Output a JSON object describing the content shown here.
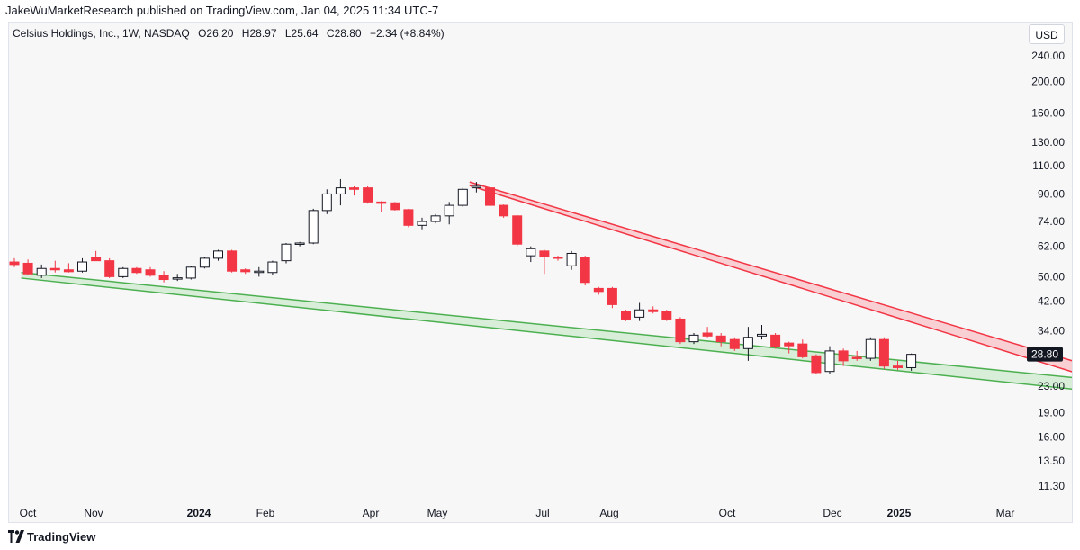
{
  "header": {
    "published_text": "JakeWuMarketResearch published on TradingView.com, Jan 04, 2025 11:34 UTC-7"
  },
  "legend": {
    "symbol": "Celsius Holdings, Inc., 1W, NASDAQ",
    "open_label": "O",
    "open": "26.20",
    "high_label": "H",
    "high": "28.97",
    "low_label": "L",
    "low": "25.64",
    "close_label": "C",
    "close": "28.80",
    "change": "+2.34 (+8.84%)"
  },
  "currency_button": "USD",
  "price_badge": "28.80",
  "footer": {
    "brand": "TradingView"
  },
  "colors": {
    "up": "#131722",
    "down": "#f23645",
    "upper_channel_stroke": "#f23645",
    "upper_channel_fill": "#f8c8cd",
    "lower_channel_stroke": "#4caf50",
    "lower_channel_fill": "#d4ecd3"
  },
  "chart_data": {
    "type": "candlestick",
    "title": "",
    "scale": "log",
    "xlabel": "",
    "ylabel": "",
    "y_ticks": [
      "240.00",
      "200.00",
      "160.00",
      "130.00",
      "110.00",
      "90.00",
      "74.00",
      "62.00",
      "50.00",
      "42.00",
      "34.00",
      "23.00",
      "19.00",
      "16.00",
      "13.50",
      "11.30"
    ],
    "x_ticks": [
      {
        "label": "Oct",
        "bold": false
      },
      {
        "label": "Nov",
        "bold": false
      },
      {
        "label": "2024",
        "bold": true
      },
      {
        "label": "Feb",
        "bold": false
      },
      {
        "label": "Apr",
        "bold": false
      },
      {
        "label": "May",
        "bold": false
      },
      {
        "label": "Jul",
        "bold": false
      },
      {
        "label": "Aug",
        "bold": false
      },
      {
        "label": "Oct",
        "bold": false
      },
      {
        "label": "Dec",
        "bold": false
      },
      {
        "label": "2025",
        "bold": true
      },
      {
        "label": "Mar",
        "bold": false
      }
    ],
    "candles": [
      {
        "o": 55.5,
        "h": 57,
        "l": 53.5,
        "c": 54.5
      },
      {
        "o": 55,
        "h": 56.5,
        "l": 50.5,
        "c": 51
      },
      {
        "o": 50.5,
        "h": 54.5,
        "l": 49.5,
        "c": 53
      },
      {
        "o": 53,
        "h": 56,
        "l": 51.5,
        "c": 52.5
      },
      {
        "o": 52.5,
        "h": 55,
        "l": 51.5,
        "c": 51.8
      },
      {
        "o": 52,
        "h": 57,
        "l": 51.5,
        "c": 55.5
      },
      {
        "o": 57.5,
        "h": 60,
        "l": 56,
        "c": 56
      },
      {
        "o": 56,
        "h": 57,
        "l": 49.5,
        "c": 50
      },
      {
        "o": 50,
        "h": 53.5,
        "l": 49.5,
        "c": 53
      },
      {
        "o": 53,
        "h": 53.5,
        "l": 51,
        "c": 51.5
      },
      {
        "o": 52.5,
        "h": 53.5,
        "l": 50,
        "c": 50.5
      },
      {
        "o": 50.5,
        "h": 52,
        "l": 48,
        "c": 49
      },
      {
        "o": 49.5,
        "h": 51,
        "l": 48.5,
        "c": 49.6
      },
      {
        "o": 49.5,
        "h": 54,
        "l": 49,
        "c": 53.5
      },
      {
        "o": 53.5,
        "h": 57.5,
        "l": 53,
        "c": 57
      },
      {
        "o": 57,
        "h": 60.5,
        "l": 56,
        "c": 60
      },
      {
        "o": 60,
        "h": 60.5,
        "l": 51.5,
        "c": 52
      },
      {
        "o": 52.5,
        "h": 53,
        "l": 51,
        "c": 51.8
      },
      {
        "o": 51.8,
        "h": 53.5,
        "l": 50,
        "c": 52
      },
      {
        "o": 51.5,
        "h": 56,
        "l": 50.5,
        "c": 55.5
      },
      {
        "o": 56,
        "h": 63.5,
        "l": 55,
        "c": 63
      },
      {
        "o": 63,
        "h": 64,
        "l": 62,
        "c": 63.5
      },
      {
        "o": 63.5,
        "h": 81,
        "l": 63,
        "c": 80
      },
      {
        "o": 80,
        "h": 93,
        "l": 78,
        "c": 90
      },
      {
        "o": 90,
        "h": 100,
        "l": 83,
        "c": 94
      },
      {
        "o": 94,
        "h": 95,
        "l": 89,
        "c": 93
      },
      {
        "o": 94,
        "h": 95,
        "l": 84,
        "c": 85
      },
      {
        "o": 85,
        "h": 85.5,
        "l": 79,
        "c": 84.5
      },
      {
        "o": 84.5,
        "h": 85,
        "l": 80,
        "c": 80.5
      },
      {
        "o": 80.5,
        "h": 81,
        "l": 71,
        "c": 72
      },
      {
        "o": 72,
        "h": 76,
        "l": 70,
        "c": 74
      },
      {
        "o": 74,
        "h": 78,
        "l": 73,
        "c": 77
      },
      {
        "o": 77,
        "h": 85,
        "l": 72.5,
        "c": 83
      },
      {
        "o": 83,
        "h": 94,
        "l": 82,
        "c": 93
      },
      {
        "o": 94,
        "h": 98,
        "l": 91,
        "c": 95
      },
      {
        "o": 94,
        "h": 94.5,
        "l": 82,
        "c": 83
      },
      {
        "o": 83,
        "h": 83.5,
        "l": 76,
        "c": 77
      },
      {
        "o": 77,
        "h": 77.5,
        "l": 62,
        "c": 63
      },
      {
        "o": 58,
        "h": 62,
        "l": 55.5,
        "c": 61
      },
      {
        "o": 60,
        "h": 60.5,
        "l": 51,
        "c": 57.5
      },
      {
        "o": 57.5,
        "h": 58,
        "l": 56,
        "c": 57.4
      },
      {
        "o": 54,
        "h": 60,
        "l": 52.5,
        "c": 59
      },
      {
        "o": 57.5,
        "h": 58,
        "l": 47,
        "c": 48
      },
      {
        "o": 46,
        "h": 46.5,
        "l": 44,
        "c": 45
      },
      {
        "o": 46,
        "h": 46.5,
        "l": 40,
        "c": 41
      },
      {
        "o": 39,
        "h": 39.5,
        "l": 36.5,
        "c": 37
      },
      {
        "o": 37.5,
        "h": 41.5,
        "l": 36.5,
        "c": 39.5
      },
      {
        "o": 39.5,
        "h": 40.5,
        "l": 38.5,
        "c": 39
      },
      {
        "o": 39,
        "h": 39.5,
        "l": 36.5,
        "c": 37
      },
      {
        "o": 37,
        "h": 37.5,
        "l": 31,
        "c": 31.5
      },
      {
        "o": 31.5,
        "h": 33.5,
        "l": 31,
        "c": 33
      },
      {
        "o": 33.5,
        "h": 35,
        "l": 32.5,
        "c": 32.8
      },
      {
        "o": 32.8,
        "h": 33.5,
        "l": 30.5,
        "c": 31.5
      },
      {
        "o": 32,
        "h": 32.5,
        "l": 29.5,
        "c": 30
      },
      {
        "o": 30,
        "h": 35,
        "l": 27.5,
        "c": 32.5
      },
      {
        "o": 32.8,
        "h": 35.5,
        "l": 32,
        "c": 33.2
      },
      {
        "o": 33,
        "h": 33.5,
        "l": 30,
        "c": 30.5
      },
      {
        "o": 31.2,
        "h": 31.5,
        "l": 29,
        "c": 30.6
      },
      {
        "o": 31,
        "h": 32,
        "l": 28,
        "c": 28.3
      },
      {
        "o": 28.5,
        "h": 28.8,
        "l": 25,
        "c": 25.3
      },
      {
        "o": 25.5,
        "h": 30.5,
        "l": 25,
        "c": 29.5
      },
      {
        "o": 29.5,
        "h": 30,
        "l": 26.5,
        "c": 27.5
      },
      {
        "o": 28.2,
        "h": 29.5,
        "l": 27.5,
        "c": 28
      },
      {
        "o": 28,
        "h": 32.5,
        "l": 27.5,
        "c": 32
      },
      {
        "o": 32,
        "h": 32.5,
        "l": 26,
        "c": 26.5
      },
      {
        "o": 26.5,
        "h": 27.5,
        "l": 25.8,
        "c": 26.2
      },
      {
        "o": 26.2,
        "h": 28.97,
        "l": 25.64,
        "c": 28.8
      }
    ],
    "trendlines": [
      {
        "name": "",
        "kind": "upper",
        "start_index": 33.5,
        "start": [
          98,
          95.5
        ],
        "end_index": 80.5,
        "end": [
          25.5,
          23.5
        ]
      },
      {
        "name": "",
        "kind": "lower",
        "start_index": 0.5,
        "start": [
          51.5,
          49.5
        ],
        "end_index": 80.5,
        "end": [
          23.8,
          21.9
        ]
      }
    ],
    "grid": false,
    "legend_position": "top-left"
  }
}
